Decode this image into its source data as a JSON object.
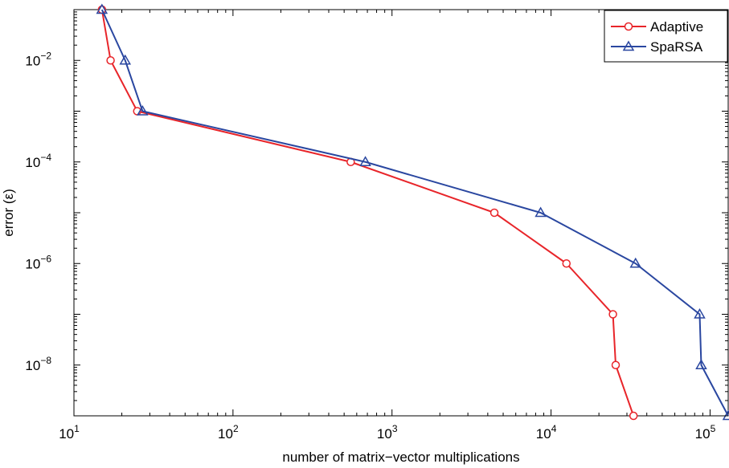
{
  "chart_data": {
    "type": "line",
    "title": "",
    "xlabel": "number of matrix−vector multiplications",
    "ylabel": "error (ε)",
    "xscale": "log",
    "yscale": "log",
    "xlim": [
      10,
      130000
    ],
    "ylim": [
      1e-09,
      0.1
    ],
    "x_ticks": [
      {
        "base": "10",
        "exp": "1",
        "value": 10
      },
      {
        "base": "10",
        "exp": "2",
        "value": 100
      },
      {
        "base": "10",
        "exp": "3",
        "value": 1000
      },
      {
        "base": "10",
        "exp": "4",
        "value": 10000
      },
      {
        "base": "10",
        "exp": "5",
        "value": 100000
      }
    ],
    "y_ticks": [
      {
        "base": "10",
        "exp": "−2",
        "value": 0.01
      },
      {
        "base": "10",
        "exp": "−4",
        "value": 0.0001
      },
      {
        "base": "10",
        "exp": "−6",
        "value": 1e-06
      },
      {
        "base": "10",
        "exp": "−8",
        "value": 1e-08
      }
    ],
    "grid": false,
    "legend_position": "top-right",
    "series": [
      {
        "name": "Adaptive",
        "color": "#e8252a",
        "marker": "circle",
        "x": [
          15,
          17,
          25,
          550,
          4400,
          12500,
          24500,
          25500,
          33000
        ],
        "y": [
          0.1,
          0.01,
          0.001,
          0.0001,
          1e-05,
          1e-06,
          1e-07,
          1e-08,
          1e-09
        ]
      },
      {
        "name": "SpaRSA",
        "color": "#2a47a0",
        "marker": "triangle",
        "x": [
          15,
          21,
          27,
          680,
          8600,
          34000,
          86000,
          88000,
          130000
        ],
        "y": [
          0.1,
          0.01,
          0.001,
          0.0001,
          1e-05,
          1e-06,
          1e-07,
          1e-08,
          1e-09
        ]
      }
    ]
  }
}
